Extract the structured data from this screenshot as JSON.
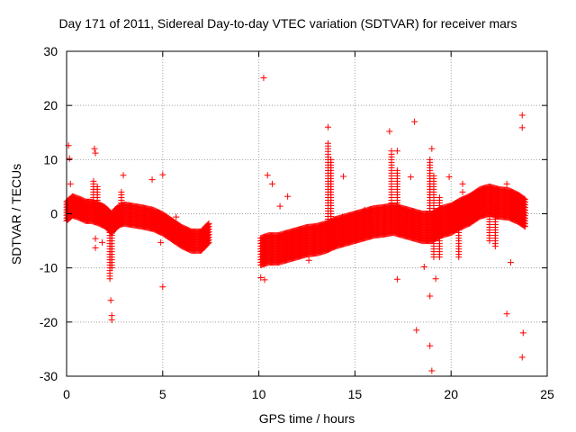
{
  "chart_data": {
    "type": "scatter",
    "title": "Day 171 of 2011, Sidereal Day-to-day VTEC variation (SDTVAR) for receiver mars",
    "xlabel": "GPS time / hours",
    "ylabel": "SDTVAR / TECUs",
    "xlim": [
      0,
      25
    ],
    "ylim": [
      -30,
      30
    ],
    "x_ticks": [
      0,
      5,
      10,
      15,
      20,
      25
    ],
    "y_ticks": [
      -30,
      -20,
      -10,
      0,
      10,
      20,
      30
    ],
    "grid": true,
    "marker": "+",
    "color": "#ff0000",
    "bands": [
      {
        "x": [
          0.0,
          0.3,
          0.7,
          1.0,
          1.3,
          1.7,
          2.0,
          2.2,
          2.35,
          2.5,
          2.8,
          3.0,
          3.5,
          4.0,
          4.5,
          5.0,
          5.5,
          6.0,
          6.5,
          7.0,
          7.4
        ],
        "y": [
          0.5,
          1.5,
          1.0,
          0.5,
          0.5,
          0.0,
          -0.5,
          -1.2,
          -1.8,
          -1.0,
          -0.2,
          0.0,
          -0.3,
          -0.6,
          -1.0,
          -1.8,
          -3.0,
          -4.2,
          -5.0,
          -5.0,
          -3.5
        ],
        "half_width": 1.8
      },
      {
        "x": [
          10.1,
          10.5,
          11.0,
          11.5,
          12.0,
          12.5,
          13.0,
          13.5,
          14.0,
          14.5,
          15.0,
          15.5,
          16.0,
          16.5,
          17.0,
          17.5,
          18.0,
          18.5,
          19.0,
          19.5,
          20.0,
          20.5,
          21.0,
          21.5,
          22.0,
          22.5,
          23.0,
          23.5,
          23.9
        ],
        "y": [
          -7.0,
          -6.5,
          -6.5,
          -6.0,
          -5.5,
          -5.0,
          -4.8,
          -4.3,
          -3.5,
          -3.0,
          -2.5,
          -2.0,
          -1.5,
          -1.3,
          -1.0,
          -1.5,
          -2.0,
          -2.5,
          -2.5,
          -1.5,
          -1.0,
          0.0,
          0.8,
          2.0,
          2.5,
          2.0,
          1.8,
          1.0,
          0.0
        ],
        "half_width": 2.5
      }
    ],
    "spikes": [
      {
        "x": 1.4,
        "y_min": -1,
        "y_max": 6
      },
      {
        "x": 1.6,
        "y_min": -1,
        "y_max": 5
      },
      {
        "x": 2.25,
        "y_min": -12,
        "y_max": -1
      },
      {
        "x": 2.35,
        "y_min": -10,
        "y_max": -1
      },
      {
        "x": 2.85,
        "y_min": 0,
        "y_max": 4
      },
      {
        "x": 13.6,
        "y_min": -3,
        "y_max": 13
      },
      {
        "x": 13.75,
        "y_min": -3,
        "y_max": 10
      },
      {
        "x": 16.9,
        "y_min": -1,
        "y_max": 11
      },
      {
        "x": 17.2,
        "y_min": -1,
        "y_max": 8
      },
      {
        "x": 18.9,
        "y_min": -5,
        "y_max": 10
      },
      {
        "x": 19.1,
        "y_min": -8,
        "y_max": 7
      },
      {
        "x": 19.4,
        "y_min": -8,
        "y_max": 3
      },
      {
        "x": 20.4,
        "y_min": -8,
        "y_max": 2
      },
      {
        "x": 22.0,
        "y_min": -5,
        "y_max": 0
      },
      {
        "x": 22.3,
        "y_min": -6,
        "y_max": 0
      }
    ],
    "outliers": [
      [
        0.1,
        12.6
      ],
      [
        0.15,
        10.2
      ],
      [
        0.2,
        5.5
      ],
      [
        1.45,
        12.0
      ],
      [
        1.5,
        11.2
      ],
      [
        1.5,
        -4.6
      ],
      [
        1.5,
        -6.3
      ],
      [
        1.85,
        -5.3
      ],
      [
        2.3,
        -16.0
      ],
      [
        2.35,
        -18.8
      ],
      [
        2.35,
        -19.6
      ],
      [
        2.95,
        7.1
      ],
      [
        4.45,
        6.3
      ],
      [
        4.9,
        -5.3
      ],
      [
        5.0,
        7.2
      ],
      [
        5.0,
        -13.5
      ],
      [
        5.7,
        -0.6
      ],
      [
        10.25,
        25.1
      ],
      [
        10.1,
        -11.8
      ],
      [
        10.3,
        -12.2
      ],
      [
        10.45,
        7.1
      ],
      [
        10.7,
        5.5
      ],
      [
        11.1,
        1.4
      ],
      [
        11.5,
        3.2
      ],
      [
        12.6,
        -8.6
      ],
      [
        13.6,
        16.0
      ],
      [
        14.4,
        6.9
      ],
      [
        15.5,
        0.7
      ],
      [
        16.8,
        15.2
      ],
      [
        16.9,
        11.6
      ],
      [
        17.2,
        11.6
      ],
      [
        17.2,
        -12.1
      ],
      [
        17.9,
        6.8
      ],
      [
        18.1,
        17.0
      ],
      [
        18.2,
        -21.5
      ],
      [
        18.6,
        -9.8
      ],
      [
        18.9,
        -15.2
      ],
      [
        18.9,
        -24.4
      ],
      [
        19.0,
        -29.0
      ],
      [
        19.0,
        12.0
      ],
      [
        19.2,
        -12.0
      ],
      [
        19.9,
        6.8
      ],
      [
        20.6,
        5.5
      ],
      [
        20.6,
        4.0
      ],
      [
        22.9,
        5.5
      ],
      [
        22.9,
        -18.5
      ],
      [
        23.7,
        18.2
      ],
      [
        23.7,
        15.9
      ],
      [
        23.75,
        -22.0
      ],
      [
        23.7,
        -26.5
      ],
      [
        23.1,
        -9.0
      ]
    ]
  }
}
